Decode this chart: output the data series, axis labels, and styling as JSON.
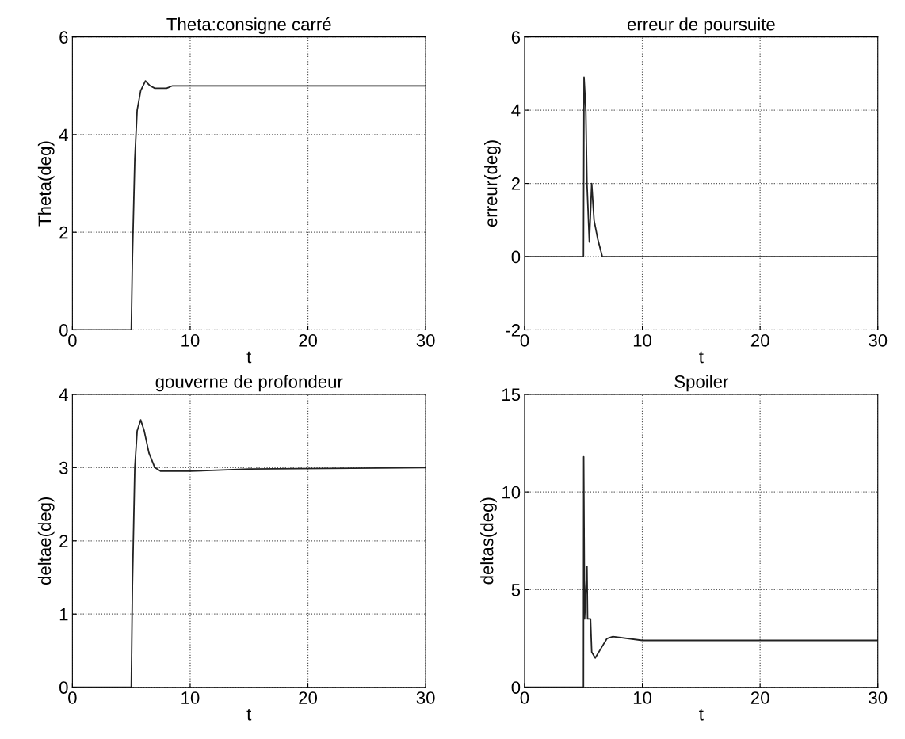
{
  "chart_data": [
    {
      "type": "line",
      "title": "Theta:consigne carré",
      "xlabel": "t",
      "ylabel": "Theta(deg)",
      "xlim": [
        0,
        30
      ],
      "ylim": [
        0,
        6
      ],
      "xticks": [
        0,
        10,
        20,
        30
      ],
      "yticks": [
        0,
        2,
        4,
        6
      ],
      "grid": true,
      "series": [
        {
          "color": "#222222",
          "x": [
            0,
            5,
            5.1,
            5.3,
            5.5,
            5.8,
            6.2,
            6.6,
            7,
            8,
            8.5,
            30
          ],
          "values": [
            0,
            0,
            1.5,
            3.5,
            4.5,
            4.9,
            5.1,
            5.0,
            4.95,
            4.95,
            5.0,
            5.0
          ]
        }
      ]
    },
    {
      "type": "line",
      "title": "erreur de poursuite",
      "xlabel": "t",
      "ylabel": "erreur(deg)",
      "xlim": [
        0,
        30
      ],
      "ylim": [
        -2,
        6
      ],
      "xticks": [
        0,
        10,
        20,
        30
      ],
      "yticks": [
        -2,
        0,
        2,
        4,
        6
      ],
      "grid": true,
      "series": [
        {
          "color": "#222222",
          "x": [
            0,
            5,
            5.05,
            5.2,
            5.3,
            5.5,
            5.7,
            5.9,
            6.2,
            6.6,
            30
          ],
          "values": [
            0,
            0,
            4.9,
            4.0,
            2.0,
            0.4,
            2.0,
            1.0,
            0.5,
            0,
            0
          ]
        }
      ]
    },
    {
      "type": "line",
      "title": "gouverne de profondeur",
      "xlabel": "t",
      "ylabel": "deltae(deg)",
      "xlim": [
        0,
        30
      ],
      "ylim": [
        0,
        4
      ],
      "xticks": [
        0,
        10,
        20,
        30
      ],
      "yticks": [
        0,
        1,
        2,
        3,
        4
      ],
      "grid": true,
      "series": [
        {
          "color": "#222222",
          "x": [
            0,
            5,
            5.1,
            5.2,
            5.3,
            5.5,
            5.8,
            6.1,
            6.5,
            7.0,
            7.5,
            10,
            15,
            30
          ],
          "values": [
            0,
            0,
            1.4,
            2.2,
            3.0,
            3.5,
            3.65,
            3.5,
            3.2,
            3.0,
            2.95,
            2.95,
            2.98,
            3.0
          ]
        }
      ]
    },
    {
      "type": "line",
      "title": "Spoiler",
      "xlabel": "t",
      "ylabel": "deltas(deg)",
      "xlim": [
        0,
        30
      ],
      "ylim": [
        0,
        15
      ],
      "xticks": [
        0,
        10,
        20,
        30
      ],
      "yticks": [
        0,
        5,
        10,
        15
      ],
      "grid": true,
      "series": [
        {
          "color": "#222222",
          "x": [
            0,
            5,
            5.02,
            5.1,
            5.3,
            5.35,
            5.6,
            5.7,
            6.0,
            6.5,
            7.0,
            7.5,
            10,
            30
          ],
          "values": [
            0,
            0,
            11.8,
            3.5,
            6.2,
            3.5,
            3.5,
            1.8,
            1.5,
            2.0,
            2.5,
            2.6,
            2.4,
            2.4
          ]
        }
      ]
    }
  ]
}
